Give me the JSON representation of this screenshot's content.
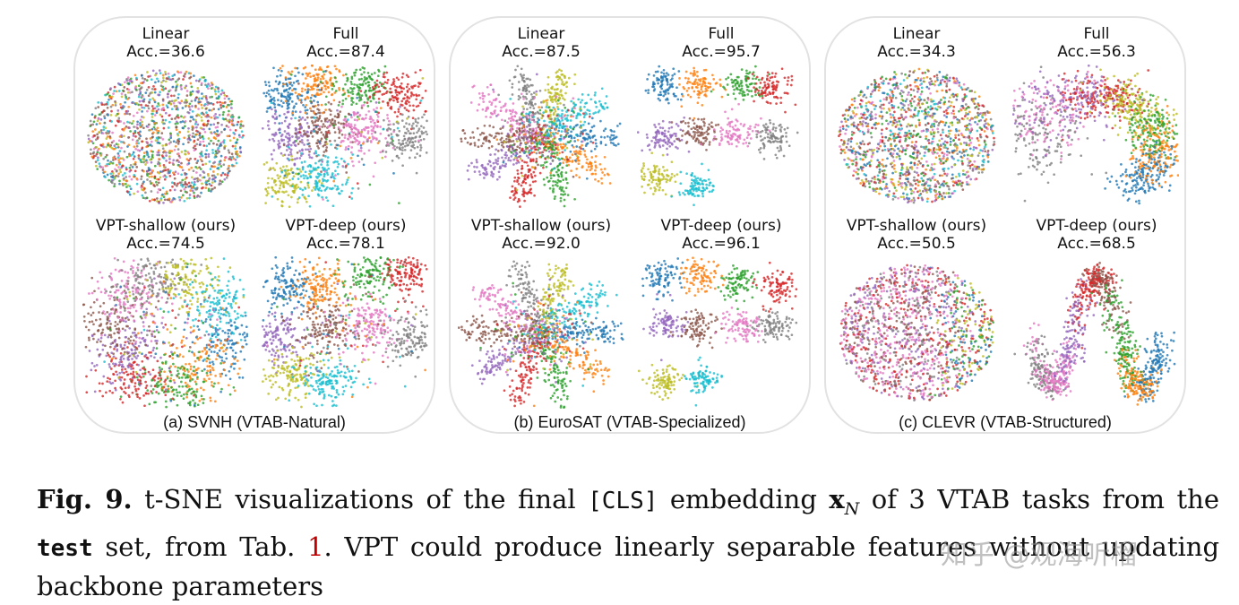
{
  "palette": [
    "#1f77b4",
    "#ff7f0e",
    "#2ca02c",
    "#d62728",
    "#9467bd",
    "#8c564b",
    "#e377c2",
    "#7f7f7f",
    "#bcbd22",
    "#17becf"
  ],
  "panels": [
    {
      "caption": "(a) SVNH (VTAB-Natural)",
      "plots": [
        {
          "method": "Linear",
          "acc": "Acc.=36.6",
          "layout": "mixed"
        },
        {
          "method": "Full",
          "acc": "Acc.=87.4",
          "layout": "clusters"
        },
        {
          "method": "VPT-shallow (ours)",
          "acc": "Acc.=74.5",
          "layout": "petals"
        },
        {
          "method": "VPT-deep (ours)",
          "acc": "Acc.=78.1",
          "layout": "clusters"
        }
      ]
    },
    {
      "caption": "(b) EuroSAT (VTAB-Specialized)",
      "plots": [
        {
          "method": "Linear",
          "acc": "Acc.=87.5",
          "layout": "star"
        },
        {
          "method": "Full",
          "acc": "Acc.=95.7",
          "layout": "separated"
        },
        {
          "method": "VPT-shallow (ours)",
          "acc": "Acc.=92.0",
          "layout": "star"
        },
        {
          "method": "VPT-deep (ours)",
          "acc": "Acc.=96.1",
          "layout": "separated"
        }
      ]
    },
    {
      "caption": "(c) CLEVR (VTAB-Structured)",
      "plots": [
        {
          "method": "Linear",
          "acc": "Acc.=34.3",
          "layout": "mixed"
        },
        {
          "method": "Full",
          "acc": "Acc.=56.3",
          "layout": "arc"
        },
        {
          "method": "VPT-shallow (ours)",
          "acc": "Acc.=50.5",
          "layout": "gradient"
        },
        {
          "method": "VPT-deep (ours)",
          "acc": "Acc.=68.5",
          "layout": "snake"
        }
      ]
    }
  ],
  "figure_caption": {
    "label": "Fig. 9.",
    "text_1": "t-SNE visualizations of the final",
    "cls_token": "[CLS]",
    "text_2": "embedding",
    "symbol": "x",
    "symbol_sub": "N",
    "text_3": "of 3 VTAB tasks from the",
    "test_word": "test",
    "text_4": "set, from Tab.",
    "ref": "1",
    "text_5": ". VPT could produce linearly separable features without updating backbone parameters"
  },
  "watermark": "知乎 @观海听榴"
}
